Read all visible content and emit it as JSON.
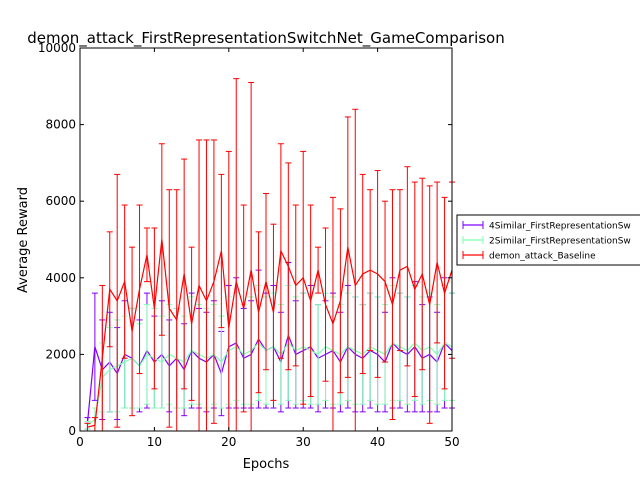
{
  "chart_data": {
    "type": "line",
    "title": "demon_attack_FirstRepresentationSwitchNet_GameComparison",
    "xlabel": "Epochs",
    "ylabel": "Average Reward",
    "xlim": [
      0,
      50
    ],
    "ylim": [
      0,
      10000
    ],
    "xticks": [
      0,
      10,
      20,
      30,
      40,
      50
    ],
    "yticks": [
      0,
      2000,
      4000,
      6000,
      8000,
      10000
    ],
    "grid": false,
    "legend_position": "right, outside the axes",
    "error_bars": true,
    "series": [
      {
        "name": "4Similar_FirstRepresentationSw",
        "color": "#7f00ff",
        "x": [
          1,
          2,
          3,
          4,
          5,
          6,
          7,
          8,
          9,
          10,
          11,
          12,
          13,
          14,
          15,
          16,
          17,
          18,
          19,
          20,
          21,
          22,
          23,
          24,
          25,
          26,
          27,
          28,
          29,
          30,
          31,
          32,
          33,
          34,
          35,
          36,
          37,
          38,
          39,
          40,
          41,
          42,
          43,
          44,
          45,
          46,
          47,
          48,
          49,
          50
        ],
        "y": [
          200,
          2200,
          1600,
          1800,
          1500,
          2000,
          1900,
          1700,
          2100,
          1800,
          2000,
          1700,
          1900,
          1600,
          2100,
          1900,
          1800,
          2000,
          1500,
          2200,
          2300,
          1900,
          2000,
          2400,
          2100,
          2200,
          1800,
          2500,
          2000,
          2100,
          2200,
          1900,
          2000,
          2100,
          1800,
          2200,
          2000,
          1900,
          2100,
          2000,
          1800,
          2300,
          2100,
          2000,
          2200,
          1900,
          2000,
          1800,
          2300,
          2100
        ],
        "error": [
          150,
          1400,
          1300,
          1300,
          1200,
          1400,
          1300,
          1200,
          1500,
          1200,
          1400,
          1200,
          1300,
          1200,
          1500,
          1300,
          1300,
          1400,
          1100,
          1600,
          1700,
          1300,
          1400,
          1800,
          1500,
          1600,
          1300,
          1900,
          1400,
          1500,
          1600,
          1400,
          1400,
          1500,
          1300,
          1600,
          1500,
          1400,
          1500,
          1500,
          1300,
          1700,
          1500,
          1500,
          1700,
          1400,
          1500,
          1300,
          1700,
          1500
        ]
      },
      {
        "name": "2Similar_FirstRepresentationSw",
        "color": "#80ffb4",
        "x": [
          1,
          2,
          3,
          4,
          5,
          6,
          7,
          8,
          9,
          10,
          11,
          12,
          13,
          14,
          15,
          16,
          17,
          18,
          19,
          20,
          21,
          22,
          23,
          24,
          25,
          26,
          27,
          28,
          29,
          30,
          31,
          32,
          33,
          34,
          35,
          36,
          37,
          38,
          39,
          40,
          41,
          42,
          43,
          44,
          45,
          46,
          47,
          48,
          49,
          50
        ],
        "y": [
          150,
          300,
          1400,
          1600,
          1700,
          1800,
          1900,
          1700,
          2000,
          1900,
          1800,
          2000,
          1900,
          1800,
          2100,
          2000,
          1900,
          2000,
          1800,
          2100,
          2200,
          2000,
          2100,
          2300,
          2100,
          2200,
          2000,
          2300,
          2100,
          2200,
          2100,
          2000,
          2200,
          2100,
          2000,
          2200,
          2100,
          2000,
          2200,
          2100,
          2000,
          2300,
          2200,
          2100,
          2300,
          2100,
          2200,
          2000,
          2300,
          2200
        ],
        "error": [
          100,
          300,
          900,
          1100,
          1200,
          1200,
          1300,
          1100,
          1300,
          1300,
          1200,
          1300,
          1300,
          1200,
          1400,
          1300,
          1300,
          1300,
          1200,
          1400,
          1400,
          1300,
          1400,
          1500,
          1400,
          1400,
          1300,
          1500,
          1400,
          1400,
          1400,
          1300,
          1400,
          1400,
          1300,
          1400,
          1400,
          1300,
          1400,
          1400,
          1300,
          1500,
          1400,
          1400,
          1500,
          1400,
          1400,
          1300,
          1500,
          1400
        ]
      },
      {
        "name": "demon_attack_Baseline",
        "color": "#ff0000",
        "x": [
          1,
          2,
          3,
          4,
          5,
          6,
          7,
          8,
          9,
          10,
          11,
          12,
          13,
          14,
          15,
          16,
          17,
          18,
          19,
          20,
          21,
          22,
          23,
          24,
          25,
          26,
          27,
          28,
          29,
          30,
          31,
          32,
          33,
          34,
          35,
          36,
          37,
          38,
          39,
          40,
          41,
          42,
          43,
          44,
          45,
          46,
          47,
          48,
          49,
          50
        ],
        "y": [
          100,
          150,
          1900,
          3700,
          3400,
          3900,
          2600,
          3700,
          4600,
          3200,
          5000,
          3200,
          2900,
          4100,
          2800,
          3800,
          3400,
          3900,
          4700,
          2700,
          3900,
          3200,
          4200,
          3100,
          3900,
          3100,
          4700,
          4300,
          3800,
          4000,
          3400,
          4200,
          3300,
          2800,
          3400,
          4800,
          3800,
          4100,
          4200,
          4100,
          3900,
          3300,
          4200,
          4300,
          3700,
          4100,
          3300,
          4400,
          3600,
          4200
        ],
        "error": [
          100,
          200,
          1900,
          1500,
          3300,
          2000,
          2200,
          2200,
          700,
          2100,
          2500,
          3100,
          3400,
          3000,
          2000,
          3800,
          4200,
          3700,
          2000,
          4600,
          5300,
          2700,
          4900,
          2100,
          2300,
          2300,
          2800,
          2700,
          2100,
          3300,
          2500,
          600,
          2000,
          3300,
          2400,
          3400,
          4600,
          2600,
          2100,
          2700,
          2100,
          3000,
          2100,
          2600,
          2800,
          2500,
          3100,
          2100,
          2500,
          2300
        ]
      }
    ]
  }
}
